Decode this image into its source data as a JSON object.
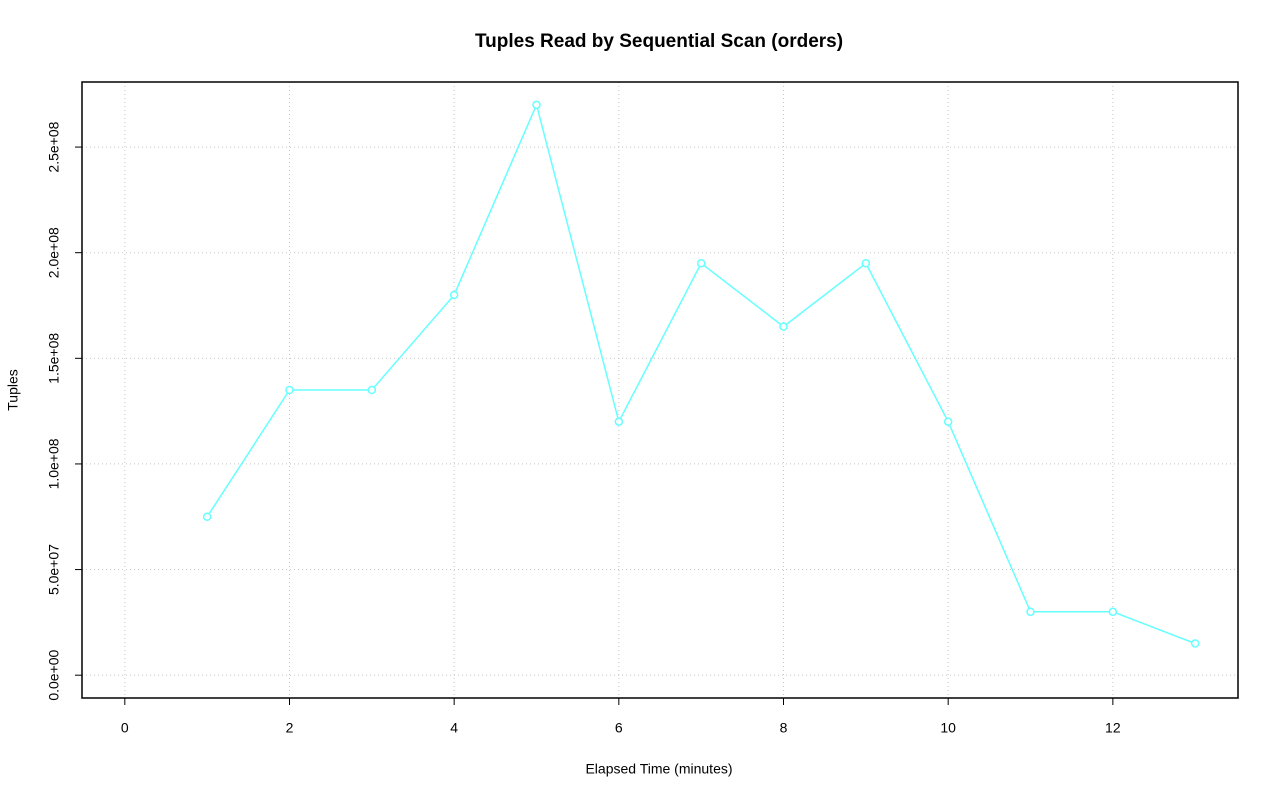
{
  "chart_data": {
    "type": "line",
    "title": "Tuples Read by Sequential Scan (orders)",
    "x_label": "Elapsed Time (minutes)",
    "y_label": "Tuples",
    "x": [
      1,
      2,
      3,
      4,
      5,
      6,
      7,
      8,
      9,
      10,
      11,
      12,
      13
    ],
    "series": [
      {
        "name": "orders",
        "color": "#66ffff",
        "values": [
          75000000,
          135000000,
          135000000,
          180000000,
          270000000,
          120000000,
          195000000,
          165000000,
          195000000,
          120000000,
          30000000,
          30000000,
          15000000
        ]
      }
    ],
    "xlim": [
      -0.52,
      13.52
    ],
    "ylim": [
      -10800000,
      280800000
    ],
    "xticks": [
      0,
      2,
      4,
      6,
      8,
      10,
      12
    ],
    "yticks": [
      {
        "value": 0,
        "label": "0.0e+00"
      },
      {
        "value": 50000000,
        "label": "5.0e+07"
      },
      {
        "value": 100000000,
        "label": "1.0e+08"
      },
      {
        "value": 150000000,
        "label": "1.5e+08"
      },
      {
        "value": 200000000,
        "label": "2.0e+08"
      },
      {
        "value": 250000000,
        "label": "2.5e+08"
      }
    ],
    "grid": true
  }
}
